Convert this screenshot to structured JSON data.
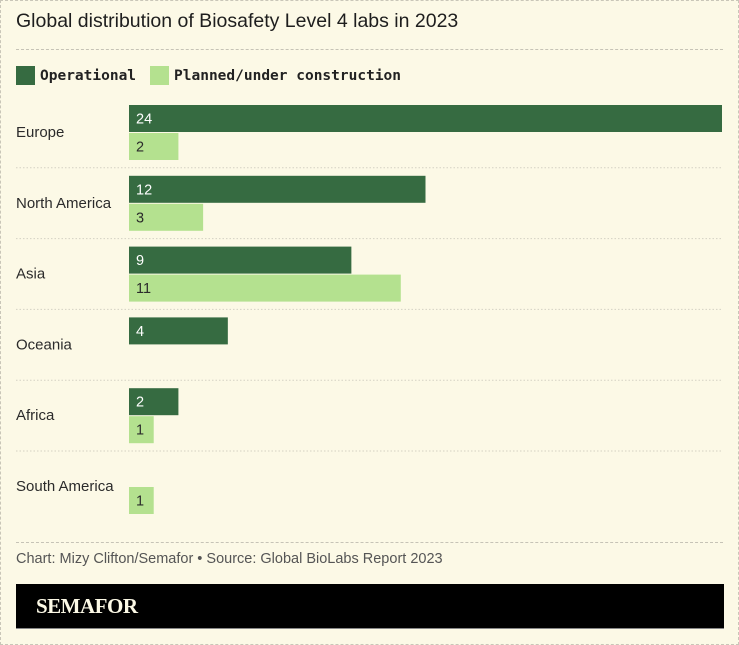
{
  "title": "Global distribution of Biosafety Level 4 labs in 2023",
  "legend": [
    {
      "label": "Operational",
      "color": "#366b41"
    },
    {
      "label": "Planned/under construction",
      "color": "#b4e18f"
    }
  ],
  "chart_data": {
    "type": "bar",
    "orientation": "horizontal",
    "title": "Global distribution of Biosafety Level 4 labs in 2023",
    "categories": [
      "Europe",
      "North America",
      "Asia",
      "Oceania",
      "Africa",
      "South America"
    ],
    "series": [
      {
        "name": "Operational",
        "color": "#366b41",
        "label_color": "#ffffff",
        "values": [
          24,
          12,
          9,
          4,
          2,
          null
        ]
      },
      {
        "name": "Planned/under construction",
        "color": "#b4e18f",
        "label_color": "#2b2b2b",
        "values": [
          2,
          3,
          11,
          null,
          1,
          1
        ]
      }
    ],
    "xlim": [
      0,
      24
    ],
    "grid": false,
    "legend_position": "top-left",
    "data_labels": "inside-left"
  },
  "source": "Chart: Mizy Clifton/Semafor • Source: Global BioLabs Report 2023",
  "brand": "SEMAFOR"
}
